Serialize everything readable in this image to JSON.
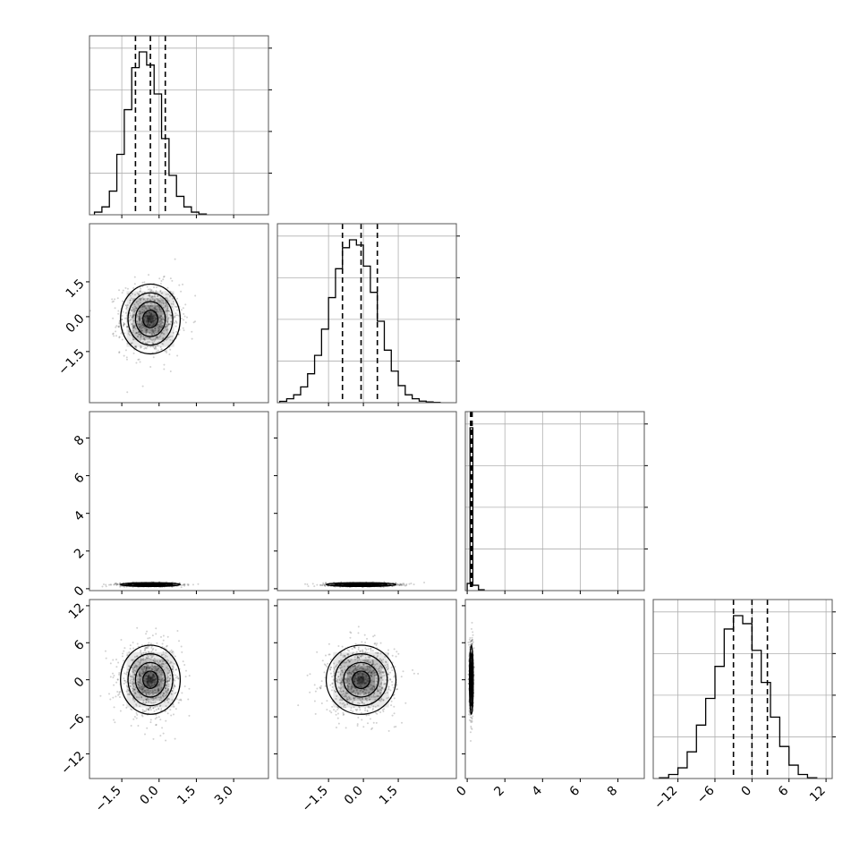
{
  "chart_data": {
    "type": "corner",
    "title": "",
    "parameters": [
      {
        "index": 0,
        "label": "",
        "range": [
          -2.8,
          4.4
        ],
        "ticks": [
          -1.5,
          0.0,
          1.5,
          3.0
        ],
        "tick_labels": [
          "−1.5",
          "0.0",
          "1.5",
          "3.0"
        ],
        "quantiles": [
          -0.95,
          -0.35,
          0.25
        ]
      },
      {
        "index": 1,
        "label": "",
        "range": [
          -3.7,
          4.0
        ],
        "ticks": [
          -1.5,
          0.0,
          1.5
        ],
        "tick_labels": [
          "−1.5",
          "0.0",
          "1.5"
        ],
        "quantiles": [
          -0.9,
          -0.1,
          0.6
        ]
      },
      {
        "index": 2,
        "label": "",
        "range": [
          -0.1,
          9.4
        ],
        "ticks": [
          0,
          2,
          4,
          6,
          8
        ],
        "tick_labels": [
          "0",
          "2",
          "4",
          "6",
          "8"
        ],
        "quantiles": [
          0.18,
          0.22,
          0.26
        ]
      },
      {
        "index": 3,
        "label": "",
        "range": [
          -16,
          13
        ],
        "ticks": [
          -12,
          -6,
          0,
          6,
          12
        ],
        "tick_labels": [
          "−12",
          "−6",
          "0",
          "6",
          "12"
        ],
        "quantiles": [
          -3,
          0,
          2.5
        ]
      }
    ],
    "histograms": [
      {
        "parameter": 0,
        "bin_edges": [
          -2.6,
          -2.3,
          -2.0,
          -1.7,
          -1.4,
          -1.1,
          -0.8,
          -0.5,
          -0.2,
          0.1,
          0.4,
          0.7,
          1.0,
          1.3,
          1.6,
          1.9
        ],
        "counts": [
          10,
          30,
          90,
          230,
          400,
          560,
          620,
          570,
          460,
          290,
          150,
          70,
          30,
          10,
          3
        ]
      },
      {
        "parameter": 1,
        "bin_edges": [
          -3.6,
          -3.3,
          -3.0,
          -2.7,
          -2.4,
          -2.1,
          -1.8,
          -1.5,
          -1.2,
          -0.9,
          -0.6,
          -0.3,
          0.0,
          0.3,
          0.6,
          0.9,
          1.2,
          1.5,
          1.8,
          2.1,
          2.4,
          2.7,
          3.0,
          3.3
        ],
        "counts": [
          5,
          15,
          30,
          60,
          110,
          180,
          280,
          400,
          510,
          590,
          620,
          600,
          520,
          420,
          310,
          200,
          120,
          65,
          30,
          15,
          6,
          3,
          1
        ]
      },
      {
        "parameter": 2,
        "bin_edges": [
          0.0,
          0.15,
          0.3,
          0.6,
          0.9
        ],
        "counts": [
          40,
          920,
          30,
          5
        ]
      },
      {
        "parameter": 3,
        "bin_edges": [
          -15,
          -13.5,
          -12,
          -10.5,
          -9,
          -7.5,
          -6,
          -4.5,
          -3,
          -1.5,
          0,
          1.5,
          3,
          4.5,
          6,
          7.5,
          9,
          10.5
        ],
        "counts": [
          3,
          15,
          40,
          100,
          200,
          300,
          420,
          560,
          610,
          580,
          480,
          360,
          230,
          120,
          50,
          15,
          3
        ]
      }
    ],
    "pairs": [
      {
        "x_param": 0,
        "y_param": 1
      },
      {
        "x_param": 0,
        "y_param": 2
      },
      {
        "x_param": 1,
        "y_param": 2
      },
      {
        "x_param": 0,
        "y_param": 3
      },
      {
        "x_param": 1,
        "y_param": 3
      },
      {
        "x_param": 2,
        "y_param": 3
      }
    ],
    "grid": true,
    "colors": {
      "line": "#000000",
      "grid": "#b0b0b0",
      "points": "#000000",
      "density": "#000000"
    }
  }
}
